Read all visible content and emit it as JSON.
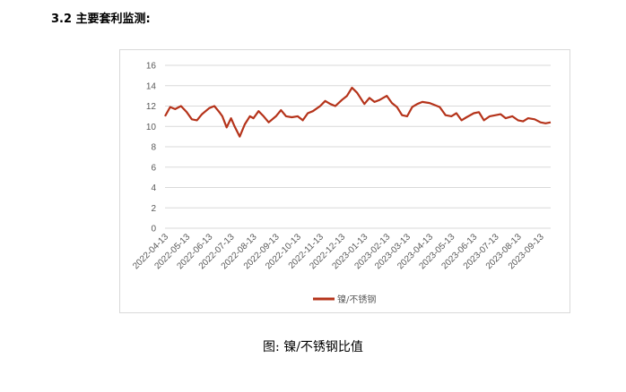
{
  "section_heading": "3.2 主要套利监测:",
  "caption": "图: 镍/不锈钢比值",
  "colors": {
    "series": "#b5331a",
    "grid": "#d9d9d9",
    "axis_text": "#595959"
  },
  "chart_data": {
    "type": "line",
    "ylim": [
      0,
      16
    ],
    "yticks": [
      0,
      2,
      4,
      6,
      8,
      10,
      12,
      14,
      16
    ],
    "grid": true,
    "legend_position": "bottom",
    "xtick_labels": [
      "2022-04-13",
      "2022-05-13",
      "2022-06-13",
      "2022-07-13",
      "2022-08-13",
      "2022-09-13",
      "2022-10-13",
      "2022-11-13",
      "2022-12-13",
      "2023-01-13",
      "2023-02-13",
      "2023-03-13",
      "2023-04-13",
      "2023-05-13",
      "2023-06-13",
      "2023-07-13",
      "2023-08-13",
      "2023-09-13"
    ],
    "series": [
      {
        "name": "镍/不锈钢",
        "x": [
          "2022-04-13",
          "2022-04-20",
          "2022-04-27",
          "2022-05-05",
          "2022-05-13",
          "2022-05-20",
          "2022-05-27",
          "2022-06-03",
          "2022-06-13",
          "2022-06-20",
          "2022-06-27",
          "2022-07-01",
          "2022-07-07",
          "2022-07-13",
          "2022-07-18",
          "2022-07-25",
          "2022-08-01",
          "2022-08-08",
          "2022-08-13",
          "2022-08-20",
          "2022-08-27",
          "2022-09-03",
          "2022-09-13",
          "2022-09-20",
          "2022-09-27",
          "2022-10-05",
          "2022-10-13",
          "2022-10-20",
          "2022-10-27",
          "2022-11-03",
          "2022-11-13",
          "2022-11-20",
          "2022-11-27",
          "2022-12-04",
          "2022-12-13",
          "2022-12-20",
          "2022-12-27",
          "2023-01-03",
          "2023-01-13",
          "2023-01-20",
          "2023-01-27",
          "2023-02-03",
          "2023-02-13",
          "2023-02-20",
          "2023-02-27",
          "2023-03-06",
          "2023-03-13",
          "2023-03-20",
          "2023-03-27",
          "2023-04-03",
          "2023-04-13",
          "2023-04-20",
          "2023-04-27",
          "2023-05-05",
          "2023-05-13",
          "2023-05-20",
          "2023-05-27",
          "2023-06-03",
          "2023-06-13",
          "2023-06-20",
          "2023-06-27",
          "2023-07-05",
          "2023-07-13",
          "2023-07-20",
          "2023-07-27",
          "2023-08-05",
          "2023-08-13",
          "2023-08-20",
          "2023-08-27",
          "2023-09-05",
          "2023-09-13",
          "2023-09-20",
          "2023-09-27"
        ],
        "values": [
          11.0,
          11.9,
          11.7,
          12.0,
          11.4,
          10.7,
          10.6,
          11.2,
          11.8,
          12.0,
          11.4,
          11.0,
          9.9,
          10.8,
          10.0,
          9.0,
          10.2,
          11.0,
          10.8,
          11.5,
          11.0,
          10.4,
          11.0,
          11.6,
          11.0,
          10.9,
          11.0,
          10.6,
          11.3,
          11.5,
          12.0,
          12.5,
          12.2,
          12.0,
          12.6,
          13.0,
          13.8,
          13.3,
          12.2,
          12.8,
          12.4,
          12.6,
          13.0,
          12.3,
          11.9,
          11.1,
          11.0,
          11.9,
          12.2,
          12.4,
          12.3,
          12.1,
          11.9,
          11.1,
          11.0,
          11.3,
          10.6,
          10.9,
          11.3,
          11.4,
          10.6,
          11.0,
          11.1,
          11.2,
          10.8,
          11.0,
          10.6,
          10.5,
          10.8,
          10.7,
          10.4,
          10.3,
          10.4
        ]
      }
    ]
  }
}
